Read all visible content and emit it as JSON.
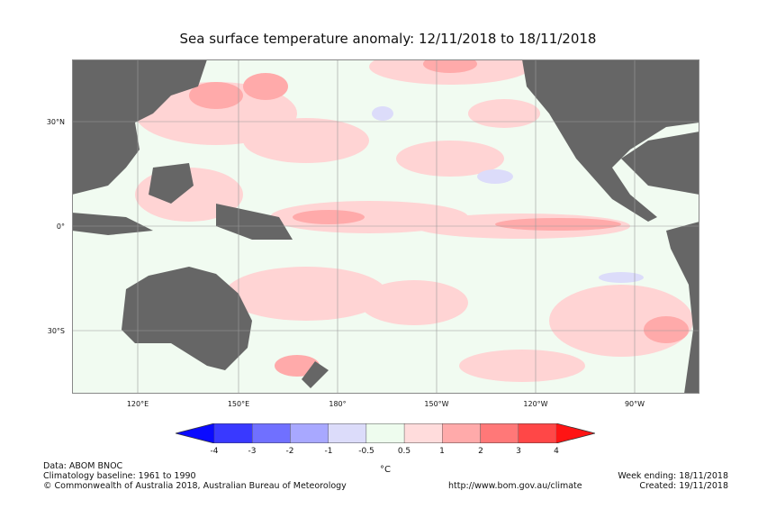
{
  "title": "Sea surface temperature anomaly: 12/11/2018 to 18/11/2018",
  "map": {
    "latitude_labels": [
      "30°N",
      "0°",
      "30°S"
    ],
    "longitude_labels": [
      "120°E",
      "150°E",
      "180°",
      "150°W",
      "120°W",
      "90°W"
    ],
    "land_color": "#666666",
    "ocean_neutral_color": "#f1fbf1"
  },
  "colorbar": {
    "ticks": [
      "-4",
      "-3",
      "-2",
      "-1",
      "-0.5",
      "0.5",
      "1",
      "2",
      "3",
      "4"
    ],
    "colors": [
      "#0b0bff",
      "#3939ff",
      "#7070ff",
      "#a8a8ff",
      "#dcdcfa",
      "#eefcee",
      "#ffdcdc",
      "#ffaaaa",
      "#ff7878",
      "#ff4747",
      "#ff1414"
    ],
    "unit": "°C"
  },
  "footer": {
    "data": "Data: ABOM BNOC",
    "baseline": "Climatology baseline: 1961 to 1990",
    "copyright": "© Commonwealth of Australia 2018, Australian Bureau of Meteorology",
    "url": "http://www.bom.gov.au/climate",
    "week_ending": "Week ending: 18/11/2018",
    "created": "Created: 19/11/2018"
  }
}
